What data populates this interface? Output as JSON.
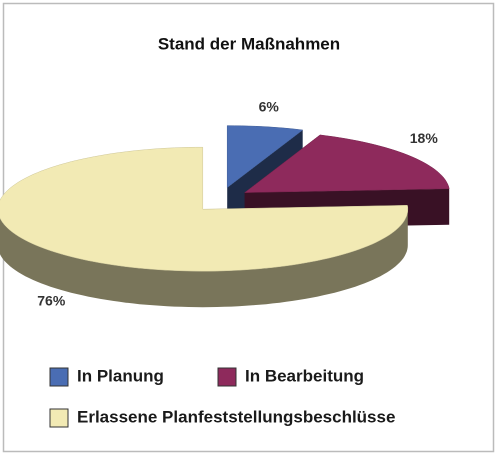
{
  "chart_data": {
    "type": "pie3d",
    "title": "Stand der Maßnahmen",
    "categories": [
      "In Planung",
      "In Bearbeitung",
      "Erlassene Planfeststellungsbeschlüsse"
    ],
    "values": [
      6,
      18,
      76
    ],
    "value_labels": [
      "6%",
      "18%",
      "76%"
    ],
    "colors": [
      "#4a6db3",
      "#8e2a5c",
      "#f2eab4"
    ]
  }
}
